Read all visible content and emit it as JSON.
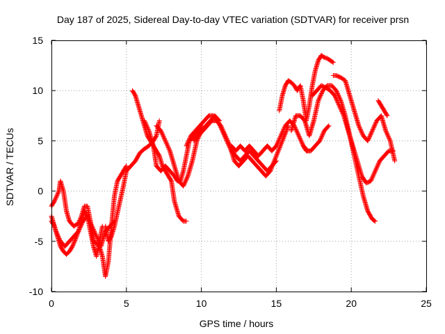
{
  "chart_data": {
    "type": "scatter",
    "title": "Day 187 of 2025, Sidereal Day-to-day VTEC variation (SDTVAR) for receiver prsn",
    "xlabel": "GPS time / hours",
    "ylabel": "SDTVAR / TECUs",
    "xlim": [
      0,
      25
    ],
    "ylim": [
      -10,
      15
    ],
    "xticks": [
      0,
      5,
      10,
      15,
      20,
      25
    ],
    "yticks": [
      -10,
      -5,
      0,
      5,
      10,
      15
    ],
    "grid": true,
    "legend": "none",
    "marker": "+",
    "color": "#ff0000",
    "series": [
      {
        "x": [
          0.0,
          0.2,
          0.35,
          0.5,
          0.6,
          0.8,
          1.0,
          1.2,
          1.5,
          1.8,
          2.0,
          2.2,
          2.4,
          2.6,
          2.8,
          3.0,
          3.2,
          3.4,
          3.6,
          3.8,
          4.0,
          4.2,
          4.4,
          4.6,
          4.8,
          5.0
        ],
        "y": [
          -1.5,
          -1.0,
          -0.5,
          0.0,
          1.0,
          0.0,
          -2.0,
          -3.0,
          -3.5,
          -3.2,
          -2.5,
          -1.5,
          -1.5,
          -3.0,
          -5.0,
          -5.2,
          -5.5,
          -6.5,
          -8.5,
          -7.0,
          -3.5,
          -0.5,
          1.0,
          1.5,
          2.0,
          2.5
        ]
      },
      {
        "x": [
          0.0,
          0.2,
          0.4,
          0.6,
          0.8,
          1.0,
          1.2,
          1.4,
          1.6,
          1.8,
          2.0,
          2.2,
          2.4,
          2.6,
          2.8,
          3.0,
          3.2,
          3.4
        ],
        "y": [
          -3.0,
          -3.5,
          -4.5,
          -5.5,
          -6.0,
          -6.3,
          -6.0,
          -5.5,
          -4.8,
          -4.0,
          -3.0,
          -2.0,
          -2.5,
          -4.0,
          -5.5,
          -6.5,
          -5.0,
          -3.5
        ]
      },
      {
        "x": [
          0.0,
          0.3,
          0.6,
          0.9,
          1.2,
          1.5,
          1.8,
          2.1,
          2.4,
          2.7,
          3.0,
          3.3,
          3.6,
          3.9,
          4.2
        ],
        "y": [
          -2.5,
          -4.0,
          -5.0,
          -5.5,
          -5.0,
          -4.5,
          -4.0,
          -3.0,
          -2.5,
          -3.5,
          -4.5,
          -5.5,
          -4.0,
          -3.5,
          -3.0
        ]
      },
      {
        "x": [
          3.6,
          3.8,
          4.0,
          4.2,
          4.5,
          4.8,
          5.0,
          5.3,
          5.6,
          5.9,
          6.2,
          6.5,
          6.8,
          7.0,
          7.2
        ],
        "y": [
          -3.5,
          -5.0,
          -4.5,
          -3.5,
          -1.5,
          0.5,
          2.0,
          2.5,
          3.0,
          3.8,
          4.2,
          4.5,
          5.0,
          5.5,
          7.0
        ]
      },
      {
        "x": [
          5.4,
          5.6,
          5.8,
          6.0,
          6.2,
          6.4,
          6.6,
          6.8,
          7.0,
          7.2,
          7.4,
          7.6,
          7.8,
          8.0,
          8.2,
          8.5,
          8.8,
          9.0
        ],
        "y": [
          10.0,
          9.5,
          8.5,
          7.5,
          6.5,
          5.5,
          5.0,
          4.5,
          4.0,
          3.5,
          2.5,
          2.0,
          1.5,
          1.0,
          -1.0,
          -2.5,
          -3.0,
          -3.0
        ]
      },
      {
        "x": [
          6.2,
          6.5,
          6.8,
          7.0,
          7.3,
          7.6,
          7.9,
          8.2,
          8.4,
          8.6,
          8.8,
          9.0,
          9.2,
          9.5,
          9.8,
          10.0
        ],
        "y": [
          7.0,
          6.0,
          4.5,
          2.5,
          2.0,
          2.5,
          2.0,
          1.5,
          1.0,
          1.0,
          2.0,
          3.5,
          5.0,
          5.5,
          6.0,
          6.5
        ]
      },
      {
        "x": [
          7.0,
          7.3,
          7.6,
          7.9,
          8.2,
          8.5,
          8.8,
          9.1,
          9.4,
          9.7,
          10.0,
          10.3,
          10.6,
          10.9,
          11.2
        ],
        "y": [
          6.5,
          6.0,
          5.0,
          4.0,
          2.5,
          1.0,
          0.5,
          1.5,
          3.0,
          5.0,
          6.0,
          6.5,
          7.0,
          7.5,
          7.0
        ]
      },
      {
        "x": [
          9.0,
          9.3,
          9.6,
          9.9,
          10.2,
          10.5,
          10.8,
          11.1,
          11.4,
          11.7,
          12.0,
          12.3,
          12.6,
          12.9,
          13.2,
          13.5,
          13.8,
          14.1,
          14.4,
          14.7,
          15.0
        ],
        "y": [
          4.5,
          5.5,
          6.0,
          6.5,
          7.0,
          7.5,
          7.5,
          7.0,
          6.0,
          5.0,
          4.0,
          3.5,
          3.0,
          3.5,
          4.0,
          3.5,
          3.0,
          2.5,
          2.0,
          2.5,
          3.0
        ]
      },
      {
        "x": [
          9.5,
          9.8,
          10.1,
          10.4,
          10.7,
          11.0,
          11.3,
          11.6,
          11.9,
          12.2,
          12.5,
          12.8,
          13.1,
          13.4,
          13.7,
          14.0,
          14.3,
          14.6,
          15.0,
          15.4,
          15.8
        ],
        "y": [
          5.0,
          5.5,
          6.0,
          6.5,
          7.0,
          7.0,
          6.5,
          5.5,
          4.5,
          3.0,
          2.5,
          3.0,
          3.5,
          3.0,
          2.5,
          2.0,
          1.5,
          2.0,
          3.5,
          5.0,
          6.5
        ]
      },
      {
        "x": [
          12.0,
          12.3,
          12.6,
          12.9,
          13.2,
          13.5,
          13.8,
          14.1,
          14.4,
          14.7,
          15.0,
          15.3,
          15.6,
          15.9,
          16.2,
          16.5,
          16.8,
          17.1
        ],
        "y": [
          4.5,
          4.0,
          4.5,
          4.0,
          4.5,
          4.0,
          3.5,
          4.0,
          4.5,
          4.0,
          4.5,
          5.5,
          6.5,
          7.0,
          6.5,
          5.5,
          4.5,
          4.0
        ]
      },
      {
        "x": [
          15.2,
          15.4,
          15.6,
          15.8,
          16.0,
          16.2,
          16.4,
          16.6,
          16.8,
          17.0,
          17.2,
          17.4,
          17.6,
          17.8,
          18.0,
          18.2,
          18.4,
          18.6,
          18.8
        ],
        "y": [
          8.0,
          9.5,
          10.5,
          11.0,
          10.8,
          10.5,
          10.0,
          10.5,
          9.0,
          7.0,
          8.5,
          10.5,
          12.0,
          13.0,
          13.5,
          13.3,
          13.2,
          13.0,
          12.8
        ]
      },
      {
        "x": [
          16.0,
          16.3,
          16.6,
          16.9,
          17.2,
          17.5,
          17.8,
          18.1,
          18.4,
          18.7,
          19.0,
          19.3,
          19.6,
          19.9,
          20.2,
          20.5,
          20.8,
          21.1,
          21.4,
          21.6
        ],
        "y": [
          6.0,
          7.5,
          7.5,
          7.0,
          5.5,
          7.0,
          9.0,
          10.0,
          10.5,
          10.5,
          10.0,
          9.0,
          7.5,
          5.5,
          3.5,
          1.5,
          -0.5,
          -2.0,
          -2.8,
          -3.0
        ]
      },
      {
        "x": [
          17.4,
          17.7,
          18.0,
          18.3,
          18.6,
          18.9,
          19.2,
          19.5,
          19.8,
          20.1,
          20.4,
          20.7,
          21.0,
          21.3,
          21.6,
          21.9,
          22.2,
          22.5,
          22.8
        ],
        "y": [
          9.5,
          10.0,
          10.5,
          10.3,
          10.0,
          9.5,
          8.5,
          7.5,
          6.0,
          4.5,
          3.0,
          1.5,
          0.8,
          1.0,
          2.0,
          3.0,
          3.5,
          4.0,
          4.0
        ]
      },
      {
        "x": [
          18.8,
          19.0,
          19.3,
          19.6,
          19.9,
          20.2,
          20.5,
          20.8,
          21.1,
          21.4,
          21.7,
          22.0,
          22.3,
          22.6,
          22.9
        ],
        "y": [
          11.5,
          11.5,
          11.3,
          11.0,
          9.5,
          8.0,
          6.5,
          5.5,
          5.0,
          6.0,
          7.0,
          7.5,
          6.0,
          5.0,
          3.0
        ]
      },
      {
        "x": [
          16.8,
          17.0,
          17.3,
          17.6,
          17.9,
          18.2,
          18.5
        ],
        "y": [
          4.5,
          4.0,
          4.0,
          4.5,
          5.0,
          6.0,
          6.5
        ]
      },
      {
        "x": [
          21.8,
          22.0,
          22.2,
          22.4
        ],
        "y": [
          9.0,
          8.5,
          8.0,
          7.5
        ]
      }
    ]
  }
}
